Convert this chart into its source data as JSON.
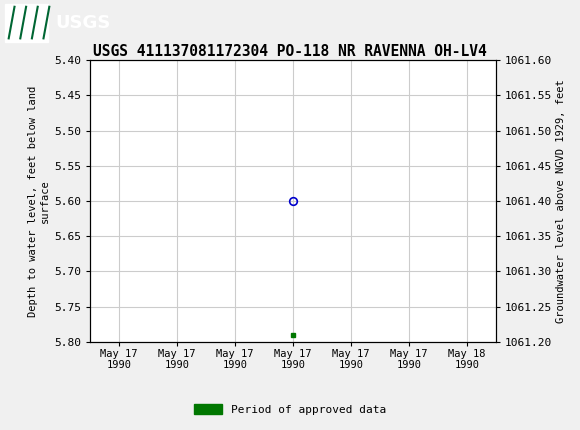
{
  "title": "USGS 411137081172304 PO-118 NR RAVENNA OH-LV4",
  "title_fontsize": 10.5,
  "header_color": "#006633",
  "bg_color": "#f0f0f0",
  "plot_bg_color": "#ffffff",
  "grid_color": "#cccccc",
  "ylabel_left": "Depth to water level, feet below land\nsurface",
  "ylabel_right": "Groundwater level above NGVD 1929, feet",
  "ylim_left": [
    5.4,
    5.8
  ],
  "ylim_right": [
    1061.2,
    1061.6
  ],
  "yticks_left": [
    5.4,
    5.45,
    5.5,
    5.55,
    5.6,
    5.65,
    5.7,
    5.75,
    5.8
  ],
  "yticks_right": [
    1061.2,
    1061.25,
    1061.3,
    1061.35,
    1061.4,
    1061.45,
    1061.5,
    1061.55,
    1061.6
  ],
  "xtick_labels": [
    "May 17\n1990",
    "May 17\n1990",
    "May 17\n1990",
    "May 17\n1990",
    "May 17\n1990",
    "May 17\n1990",
    "May 18\n1990"
  ],
  "xtick_positions": [
    0,
    1,
    2,
    3,
    4,
    5,
    6
  ],
  "data_x": [
    3
  ],
  "data_y_circle": [
    5.6
  ],
  "data_y_square": [
    5.79
  ],
  "circle_color": "#0000cc",
  "square_color": "#007700",
  "legend_label": "Period of approved data",
  "legend_color": "#007700",
  "font_family": "monospace"
}
